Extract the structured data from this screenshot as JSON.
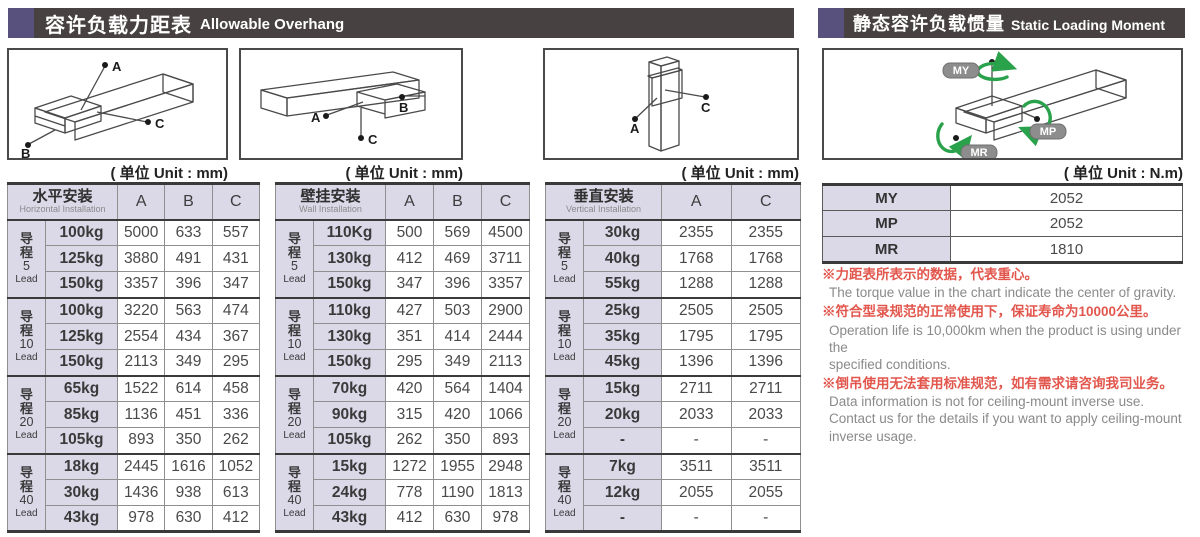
{
  "left_header": {
    "zh": "容许负载力距表",
    "en": "Allowable Overhang"
  },
  "right_header": {
    "zh": "静态容许负载惯量",
    "en": "Static Loading Moment"
  },
  "units": {
    "mm": "( 单位 Unit : mm)",
    "nm": "( 单位 Unit : N.m)"
  },
  "diagrams": {
    "horizontal_points": [
      "A",
      "B",
      "C"
    ],
    "wall_points": [
      "A",
      "B",
      "C"
    ],
    "vertical_points": [
      "A",
      "C"
    ],
    "moment_labels": [
      "MY",
      "MP",
      "MR"
    ]
  },
  "overhang_tables": [
    {
      "title_zh": "水平安装",
      "title_en": "Horizontal Installation",
      "columns": [
        "A",
        "B",
        "C"
      ],
      "groups": [
        {
          "lead_zh": "导程",
          "lead_value": "5",
          "lead_en": "Lead",
          "rows": [
            {
              "load": "100kg",
              "values": [
                "5000",
                "633",
                "557"
              ]
            },
            {
              "load": "125kg",
              "values": [
                "3880",
                "491",
                "431"
              ]
            },
            {
              "load": "150kg",
              "values": [
                "3357",
                "396",
                "347"
              ]
            }
          ]
        },
        {
          "lead_zh": "导程",
          "lead_value": "10",
          "lead_en": "Lead",
          "rows": [
            {
              "load": "100kg",
              "values": [
                "3220",
                "563",
                "474"
              ]
            },
            {
              "load": "125kg",
              "values": [
                "2554",
                "434",
                "367"
              ]
            },
            {
              "load": "150kg",
              "values": [
                "2113",
                "349",
                "295"
              ]
            }
          ]
        },
        {
          "lead_zh": "导程",
          "lead_value": "20",
          "lead_en": "Lead",
          "rows": [
            {
              "load": "65kg",
              "values": [
                "1522",
                "614",
                "458"
              ]
            },
            {
              "load": "85kg",
              "values": [
                "1136",
                "451",
                "336"
              ]
            },
            {
              "load": "105kg",
              "values": [
                "893",
                "350",
                "262"
              ]
            }
          ]
        },
        {
          "lead_zh": "导程",
          "lead_value": "40",
          "lead_en": "Lead",
          "rows": [
            {
              "load": "18kg",
              "values": [
                "2445",
                "1616",
                "1052"
              ]
            },
            {
              "load": "30kg",
              "values": [
                "1436",
                "938",
                "613"
              ]
            },
            {
              "load": "43kg",
              "values": [
                "978",
                "630",
                "412"
              ]
            }
          ]
        }
      ]
    },
    {
      "title_zh": "壁挂安装",
      "title_en": "Wall Installation",
      "columns": [
        "A",
        "B",
        "C"
      ],
      "groups": [
        {
          "lead_zh": "导程",
          "lead_value": "5",
          "lead_en": "Lead",
          "rows": [
            {
              "load": "110Kg",
              "values": [
                "500",
                "569",
                "4500"
              ]
            },
            {
              "load": "130kg",
              "values": [
                "412",
                "469",
                "3711"
              ]
            },
            {
              "load": "150kg",
              "values": [
                "347",
                "396",
                "3357"
              ]
            }
          ]
        },
        {
          "lead_zh": "导程",
          "lead_value": "10",
          "lead_en": "Lead",
          "rows": [
            {
              "load": "110kg",
              "values": [
                "427",
                "503",
                "2900"
              ]
            },
            {
              "load": "130kg",
              "values": [
                "351",
                "414",
                "2444"
              ]
            },
            {
              "load": "150kg",
              "values": [
                "295",
                "349",
                "2113"
              ]
            }
          ]
        },
        {
          "lead_zh": "导程",
          "lead_value": "20",
          "lead_en": "Lead",
          "rows": [
            {
              "load": "70kg",
              "values": [
                "420",
                "564",
                "1404"
              ]
            },
            {
              "load": "90kg",
              "values": [
                "315",
                "420",
                "1066"
              ]
            },
            {
              "load": "105kg",
              "values": [
                "262",
                "350",
                "893"
              ]
            }
          ]
        },
        {
          "lead_zh": "导程",
          "lead_value": "40",
          "lead_en": "Lead",
          "rows": [
            {
              "load": "15kg",
              "values": [
                "1272",
                "1955",
                "2948"
              ]
            },
            {
              "load": "24kg",
              "values": [
                "778",
                "1190",
                "1813"
              ]
            },
            {
              "load": "43kg",
              "values": [
                "412",
                "630",
                "978"
              ]
            }
          ]
        }
      ]
    },
    {
      "title_zh": "垂直安装",
      "title_en": "Vertical Installation",
      "columns": [
        "A",
        "C"
      ],
      "groups": [
        {
          "lead_zh": "导程",
          "lead_value": "5",
          "lead_en": "Lead",
          "rows": [
            {
              "load": "30kg",
              "values": [
                "2355",
                "2355"
              ]
            },
            {
              "load": "40kg",
              "values": [
                "1768",
                "1768"
              ]
            },
            {
              "load": "55kg",
              "values": [
                "1288",
                "1288"
              ]
            }
          ]
        },
        {
          "lead_zh": "导程",
          "lead_value": "10",
          "lead_en": "Lead",
          "rows": [
            {
              "load": "25kg",
              "values": [
                "2505",
                "2505"
              ]
            },
            {
              "load": "35kg",
              "values": [
                "1795",
                "1795"
              ]
            },
            {
              "load": "45kg",
              "values": [
                "1396",
                "1396"
              ]
            }
          ]
        },
        {
          "lead_zh": "导程",
          "lead_value": "20",
          "lead_en": "Lead",
          "rows": [
            {
              "load": "15kg",
              "values": [
                "2711",
                "2711"
              ]
            },
            {
              "load": "20kg",
              "values": [
                "2033",
                "2033"
              ]
            },
            {
              "load": "-",
              "values": [
                "-",
                "-"
              ]
            }
          ]
        },
        {
          "lead_zh": "导程",
          "lead_value": "40",
          "lead_en": "Lead",
          "rows": [
            {
              "load": "7kg",
              "values": [
                "3511",
                "3511"
              ]
            },
            {
              "load": "12kg",
              "values": [
                "2055",
                "2055"
              ]
            },
            {
              "load": "-",
              "values": [
                "-",
                "-"
              ]
            }
          ]
        }
      ]
    }
  ],
  "moment_table": {
    "rows": [
      {
        "label": "MY",
        "value": "2052"
      },
      {
        "label": "MP",
        "value": "2052"
      },
      {
        "label": "MR",
        "value": "1810"
      }
    ]
  },
  "notes": [
    {
      "zh": "※力距表所表示的数据，代表重心。",
      "en": "The torque value in the chart indicate the center of gravity."
    },
    {
      "zh": "※符合型录规范的正常使用下，保证寿命为10000公里。",
      "en": "Operation life is 10,000km when the product is using under the\n specified conditions."
    },
    {
      "zh": "※倒吊使用无法套用标准规范，如有需求请咨询我司业务。",
      "en": "Data information is not for ceiling-mount inverse use.\n Contact us for the details if you want to apply ceiling-mount\n inverse usage."
    }
  ],
  "colors": {
    "accent_purple": "#59517d",
    "header_bar": "#474241",
    "cell_lavender": "#dbd9e8",
    "note_red": "#e2574d",
    "note_gray": "#8a8a8a",
    "diagram_green": "#2aa14b"
  }
}
